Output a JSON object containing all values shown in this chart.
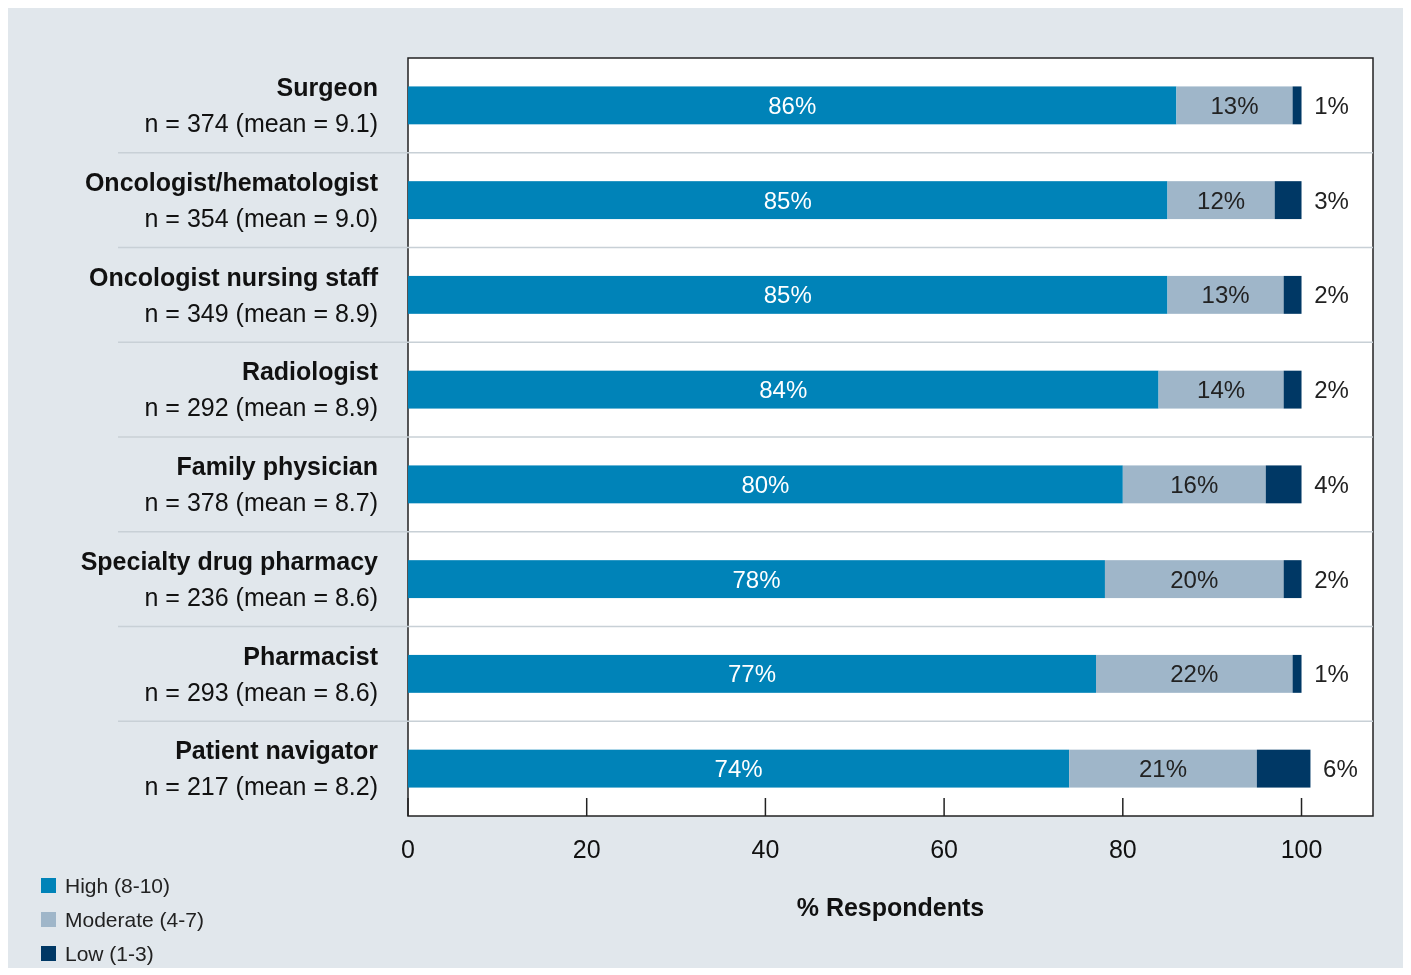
{
  "chart_data": {
    "type": "bar",
    "orientation": "horizontal",
    "stacked": true,
    "categories": [
      "Surgeon\nn = 374 (mean = 9.1)",
      "Oncologist/hematologist\nn = 354 (mean = 9.0)",
      "Oncologist nursing staff\nn = 349 (mean = 8.9)",
      "Radiologist\nn = 292 (mean = 8.9)",
      "Family physician\nn = 378 (mean = 8.7)",
      "Specialty drug pharmacy\nn = 236 (mean = 8.6)",
      "Pharmacist\nn = 293 (mean = 8.6)",
      "Patient navigator\nn = 217 (mean = 8.2)"
    ],
    "series": [
      {
        "name": "High (8-10)",
        "color": "#0083b8",
        "values": [
          86,
          85,
          85,
          84,
          80,
          78,
          77,
          74
        ],
        "value_labels": [
          "86%",
          "85%",
          "85%",
          "84%",
          "80%",
          "78%",
          "77%",
          "74%"
        ]
      },
      {
        "name": "Moderate (4-7)",
        "color": "#9fb6c9",
        "values": [
          13,
          12,
          13,
          14,
          16,
          20,
          22,
          21
        ],
        "value_labels": [
          "13%",
          "12%",
          "13%",
          "14%",
          "16%",
          "20%",
          "22%",
          "21%"
        ]
      },
      {
        "name": "Low (1-3)",
        "color": "#003865",
        "values": [
          1,
          3,
          2,
          2,
          4,
          2,
          1,
          6
        ],
        "value_labels": [
          "1%",
          "3%",
          "2%",
          "2%",
          "4%",
          "2%",
          "1%",
          "6%"
        ]
      }
    ],
    "xlabel": "% Respondents",
    "xlim": [
      0,
      108
    ],
    "xticks": [
      0,
      20,
      40,
      60,
      80,
      100
    ],
    "grid": "y",
    "legend": "bottom left"
  }
}
